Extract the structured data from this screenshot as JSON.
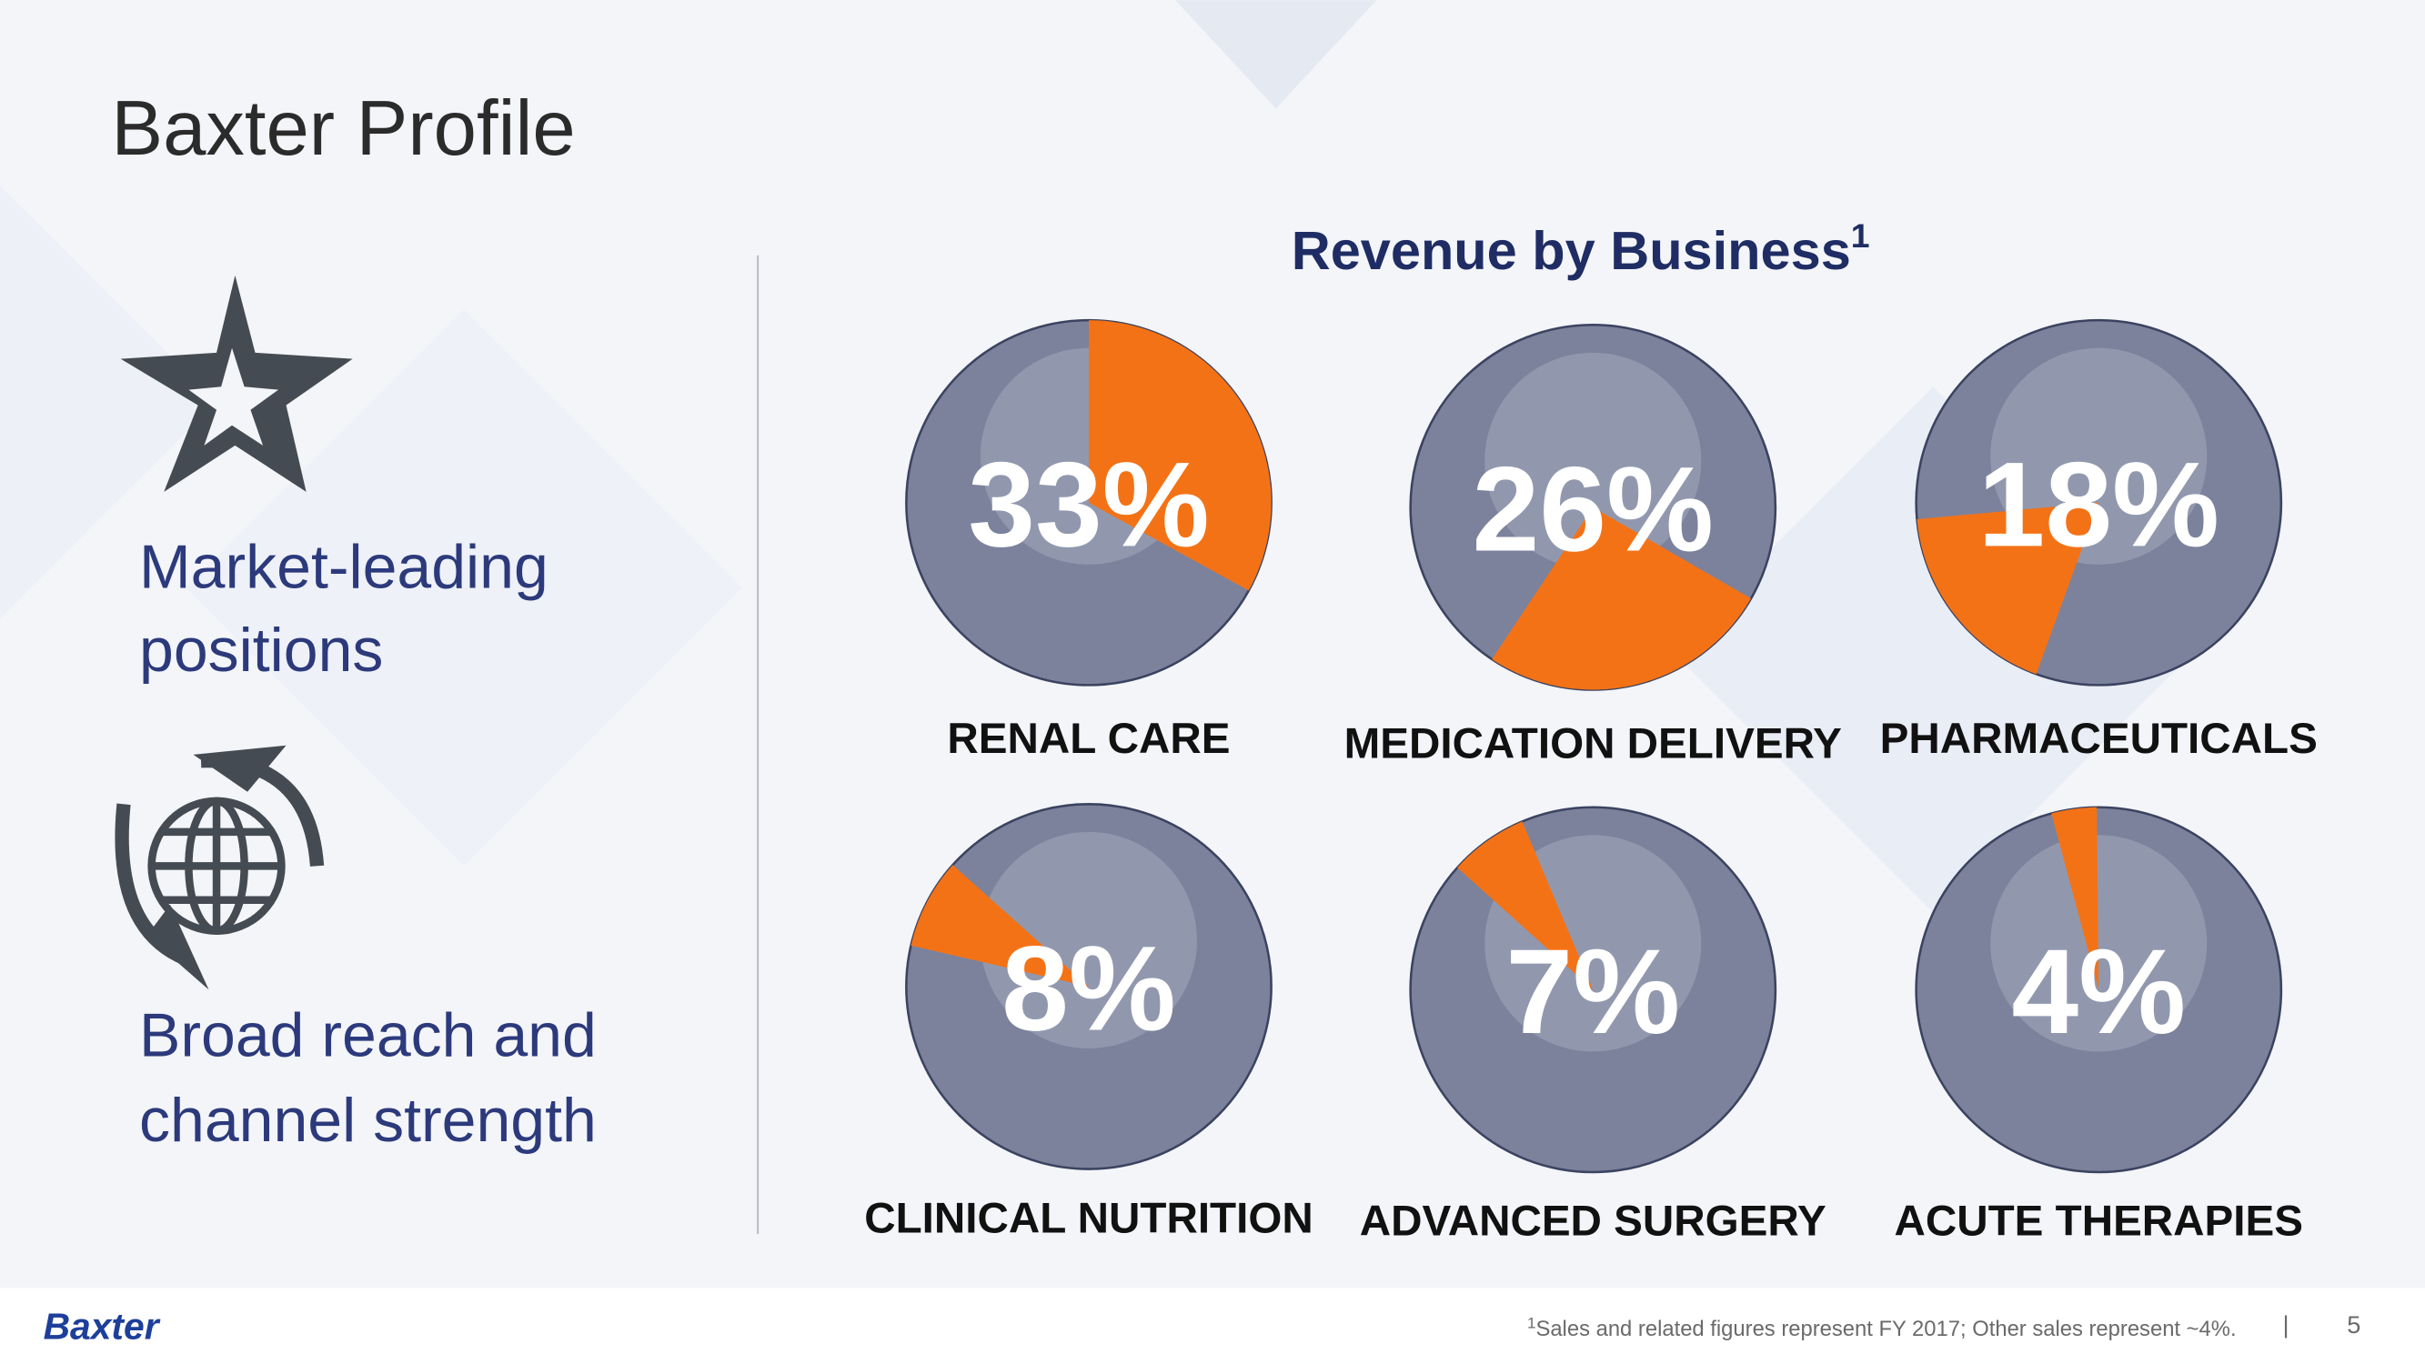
{
  "header": {
    "title": "Baxter Profile"
  },
  "left_items": [
    {
      "lines": [
        "Market-leading",
        "positions"
      ]
    },
    {
      "lines": [
        "Broad reach and",
        "channel strength"
      ]
    }
  ],
  "chart_data": {
    "type": "pie",
    "title": "Revenue by Business",
    "title_superscript": "1",
    "categories": [
      "RENAL CARE",
      "MEDICATION DELIVERY",
      "PHARMACEUTICALS",
      "CLINICAL NUTRITION",
      "ADVANCED SURGERY",
      "ACUTE THERAPIES"
    ],
    "values": [
      33,
      26,
      18,
      8,
      7,
      4
    ],
    "value_labels": [
      "33%",
      "26%",
      "18%",
      "8%",
      "7%",
      "4%"
    ],
    "color": "#f47216"
  },
  "footer": {
    "logo": "Baxter",
    "footnote_superscript": "1",
    "footnote": "Sales and related figures represent FY 2017; Other sales represent ~4%.",
    "separator": "|",
    "page_number": "5"
  }
}
